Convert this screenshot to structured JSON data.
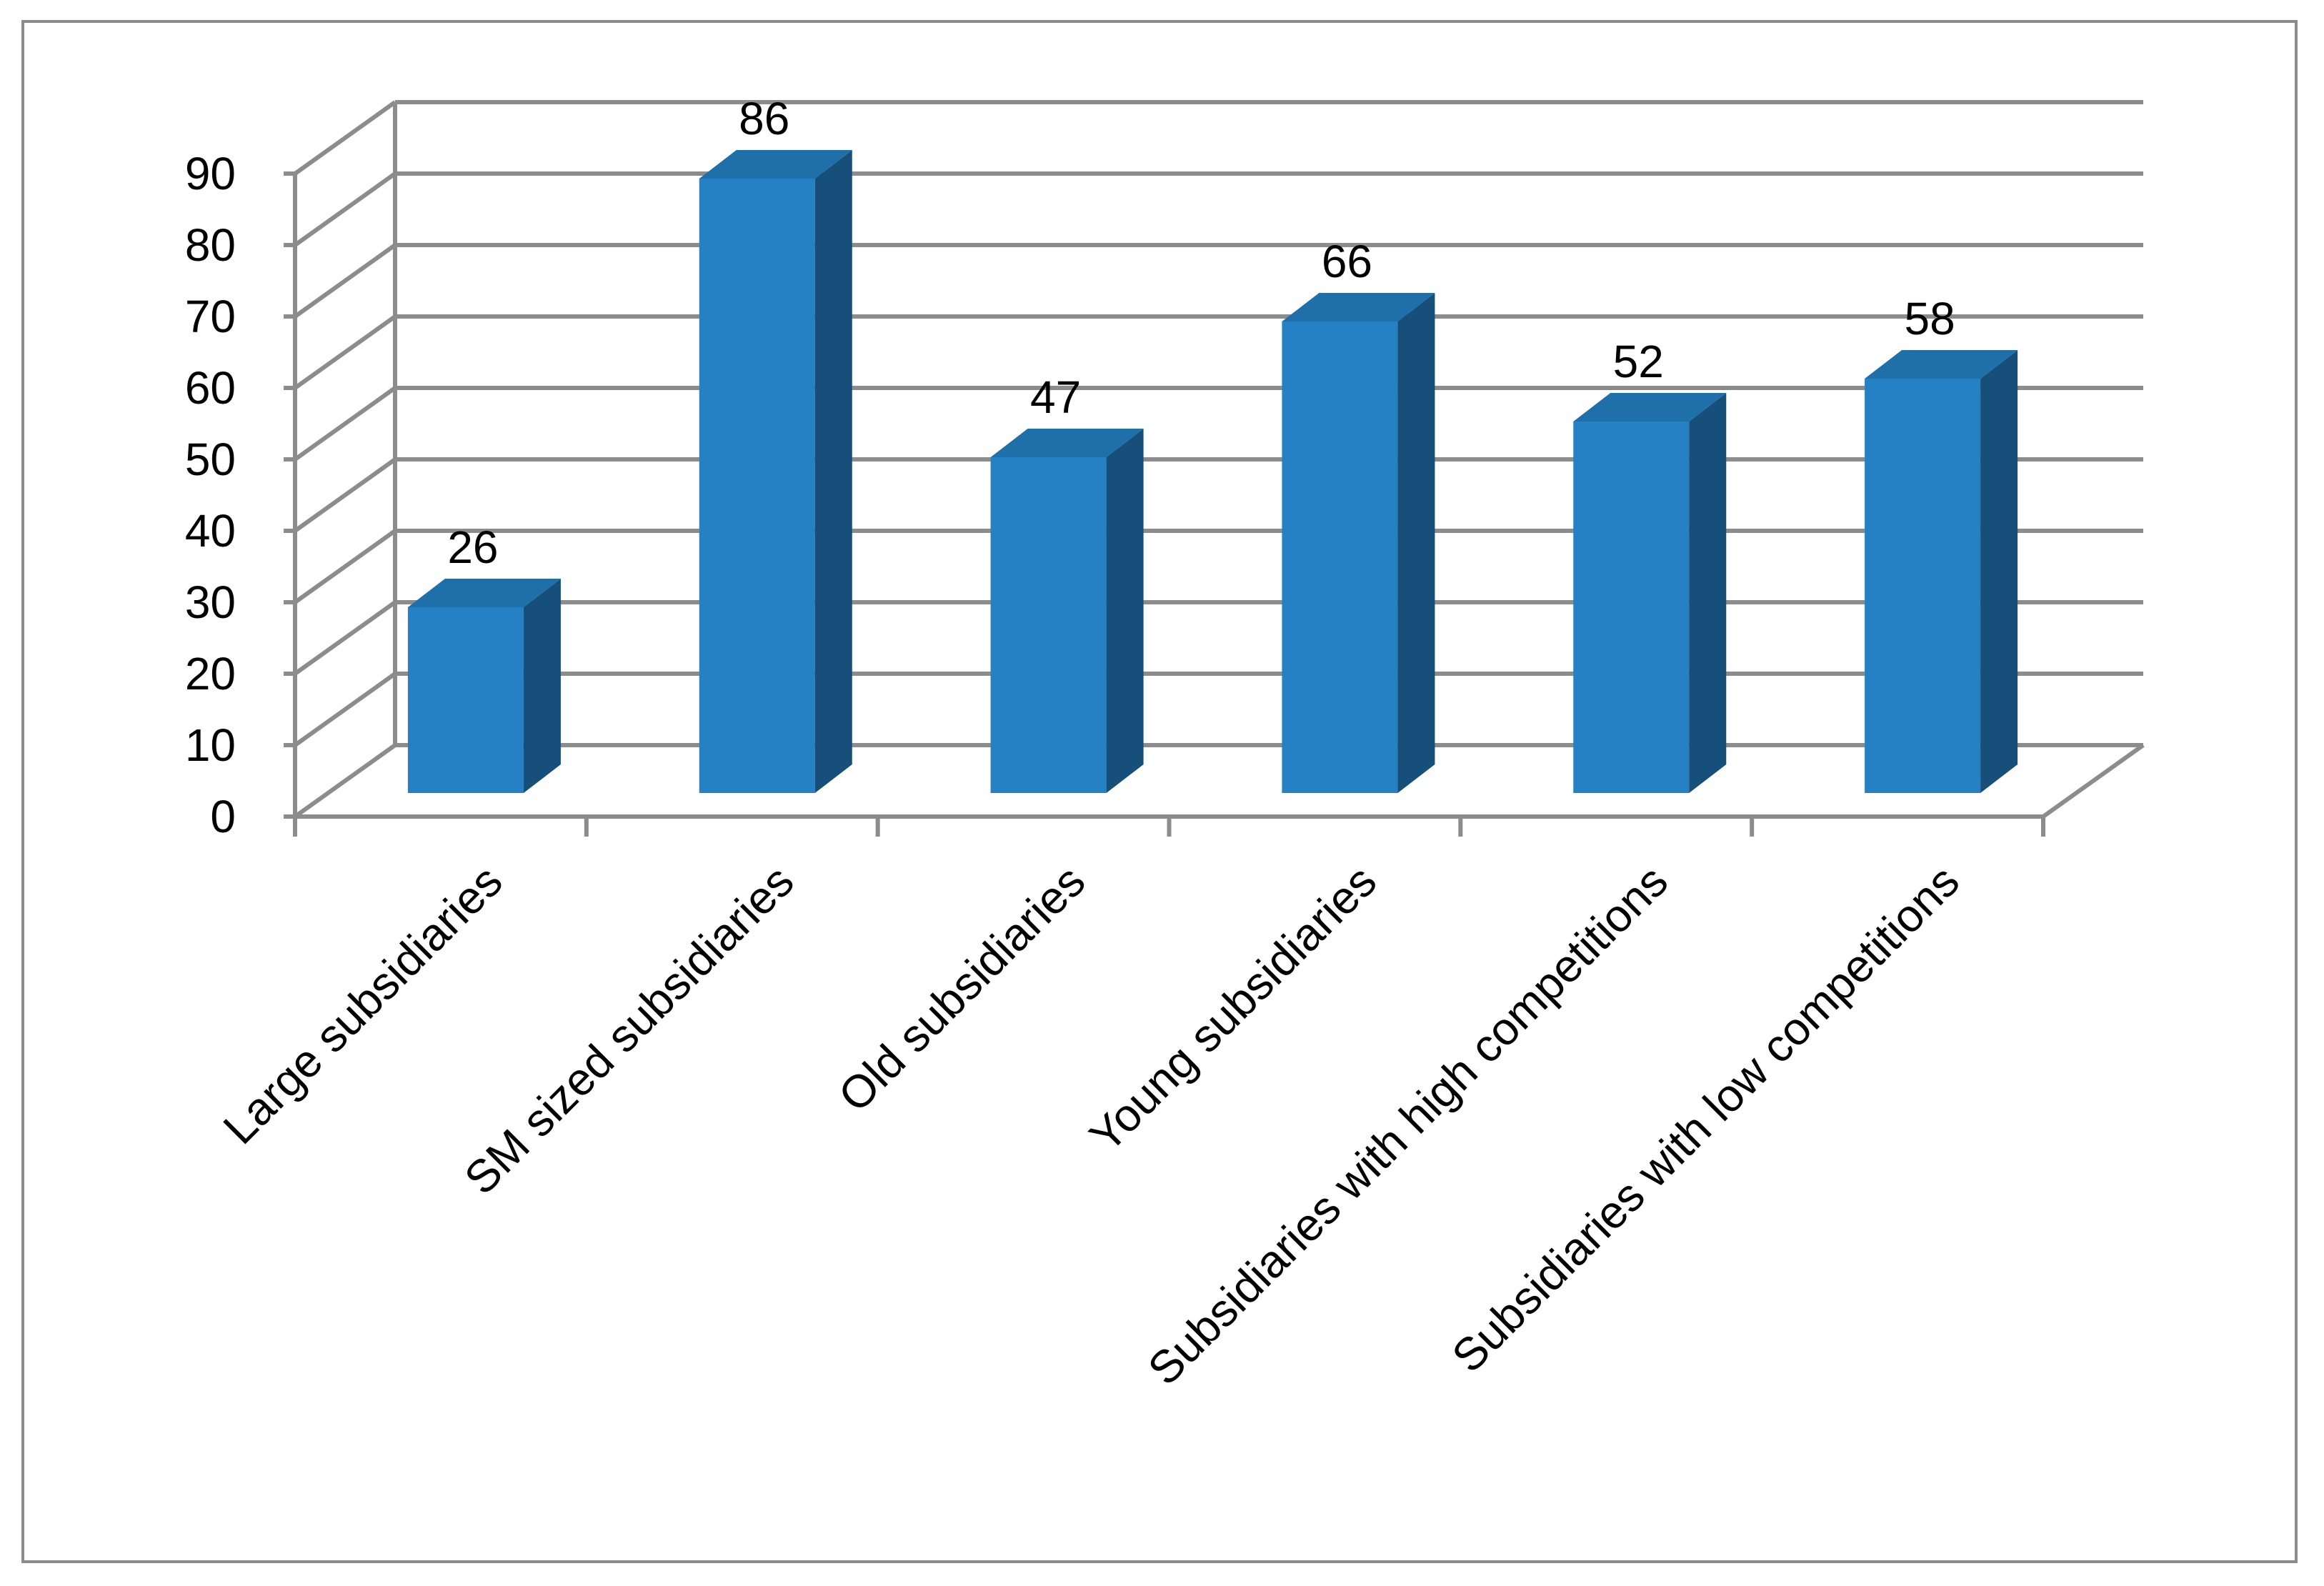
{
  "chart_data": {
    "type": "bar",
    "categories": [
      "Large subsidiaries",
      "SM sized subsidiaries",
      "Old subsidiaries",
      "Young subsidiaries",
      "Subsidiaries with high competitions",
      "Subsidiaries with low competitions"
    ],
    "values": [
      26,
      86,
      47,
      66,
      52,
      58
    ],
    "ylim": [
      0,
      90
    ],
    "yticks": [
      0,
      10,
      20,
      30,
      40,
      50,
      60,
      70,
      80,
      90
    ],
    "grid": true,
    "legend": "none",
    "style": "3d-column",
    "colors": {
      "bar_front": "#2581c4",
      "bar_top": "#1f6fa8",
      "bar_side": "#154f7a",
      "grid": "#8c8c8c",
      "text": "#000000"
    }
  }
}
